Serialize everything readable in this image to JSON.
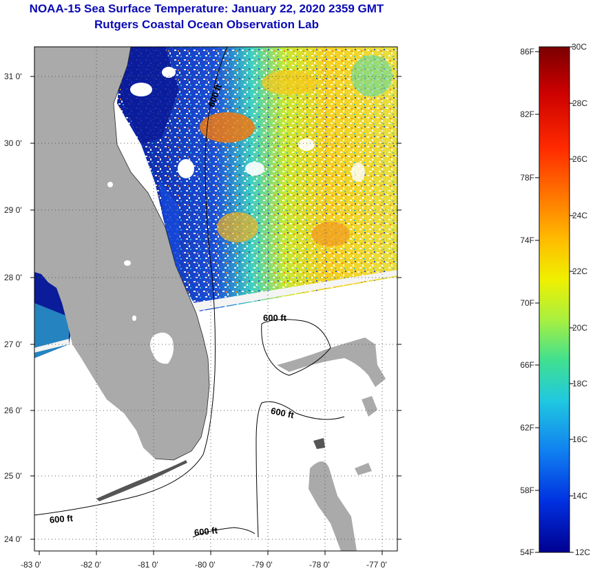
{
  "header": {
    "title_line1": "NOAA-15 Sea Surface Temperature:  January 22, 2020 2359 GMT",
    "title_line2": "Rutgers Coastal Ocean Observation Lab"
  },
  "map": {
    "lat_labels": [
      "31 0'",
      "30 0'",
      "29 0'",
      "28 0'",
      "27 0'",
      "26 0'",
      "25 0'",
      "24 0'"
    ],
    "lon_labels": [
      "-83 0'",
      "-82 0'",
      "-81 0'",
      "-80 0'",
      "-79 0'",
      "-78 0'",
      "-77 0'"
    ],
    "contour_labels": [
      "600 ft",
      "600 ft",
      "600 ft",
      "600 ft",
      "600 ft"
    ],
    "colors": {
      "land": "#aaaaaa",
      "no_data": "#ffffff",
      "contour": "#000000"
    }
  },
  "colorbar": {
    "fahrenheit": [
      "86F",
      "82F",
      "78F",
      "74F",
      "70F",
      "66F",
      "62F",
      "58F",
      "54F"
    ],
    "celsius": [
      "30C",
      "28C",
      "26C",
      "24C",
      "22C",
      "20C",
      "18C",
      "16C",
      "14C",
      "12C"
    ],
    "gradient": [
      "#7a0000",
      "#cc0000",
      "#ff2a00",
      "#ff7a00",
      "#ffbb00",
      "#f0f000",
      "#a8f040",
      "#40e090",
      "#20c8e0",
      "#1080f0",
      "#0030e0",
      "#000090"
    ]
  }
}
